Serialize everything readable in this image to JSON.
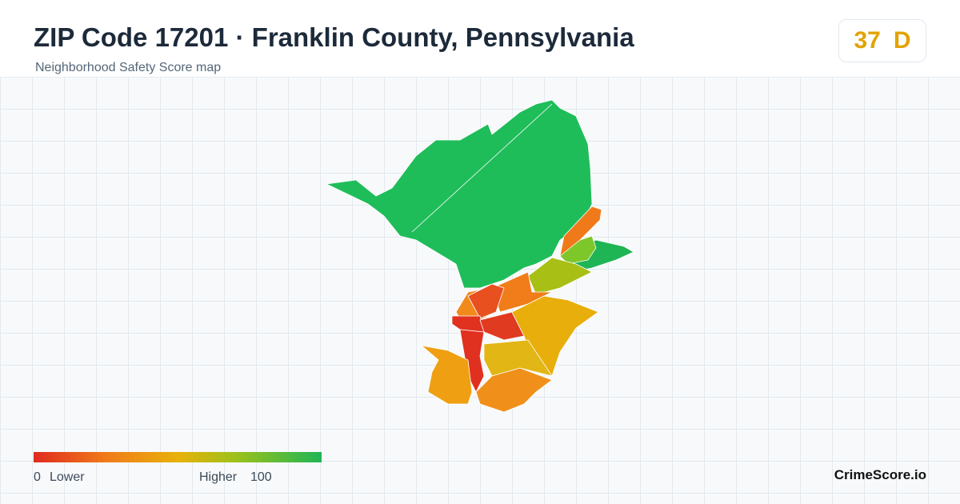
{
  "header": {
    "title": "ZIP Code 17201 · Franklin County, Pennsylvania",
    "subtitle": "Neighborhood Safety Score map"
  },
  "score": {
    "value": "37",
    "grade": "D"
  },
  "legend": {
    "min": "0",
    "min_label": "Lower",
    "max_label": "Higher",
    "max": "100"
  },
  "footer": {
    "brand": "CrimeScore.io"
  }
}
